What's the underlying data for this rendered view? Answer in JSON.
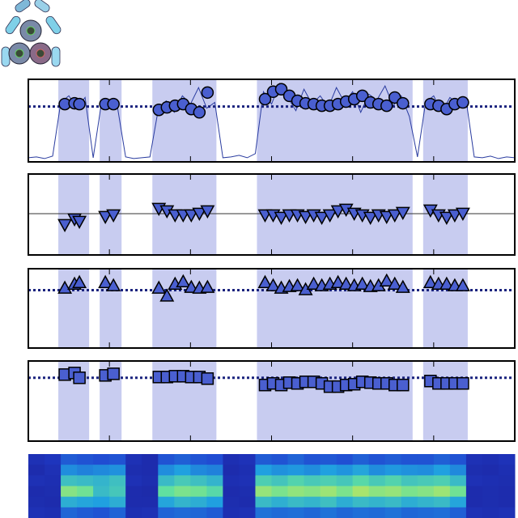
{
  "spans": [
    [
      0.37,
      0.75
    ],
    [
      0.88,
      1.15
    ],
    [
      1.53,
      2.32
    ],
    [
      2.82,
      4.74
    ],
    [
      4.87,
      5.42
    ]
  ],
  "span_color": "#c8ccf0",
  "chart_data": [
    {
      "type": "scatter",
      "marker": "circle",
      "color": "#4a5fd0",
      "xlim": [
        0,
        6
      ],
      "ylim": [
        0,
        1
      ],
      "xticks": [
        1,
        2,
        3,
        4,
        5
      ],
      "hline": 0.67,
      "hline_style": "dotted",
      "hline_color": "#1a237e",
      "trace": {
        "color": "#2a3ca0",
        "x": [
          0.0,
          0.1,
          0.2,
          0.3,
          0.4,
          0.5,
          0.6,
          0.7,
          0.8,
          0.9,
          1.0,
          1.1,
          1.2,
          1.3,
          1.4,
          1.5,
          1.6,
          1.7,
          1.8,
          1.9,
          2.0,
          2.1,
          2.2,
          2.3,
          2.4,
          2.5,
          2.6,
          2.7,
          2.8,
          2.9,
          3.0,
          3.1,
          3.2,
          3.3,
          3.4,
          3.5,
          3.6,
          3.7,
          3.8,
          3.9,
          4.0,
          4.1,
          4.2,
          4.3,
          4.4,
          4.5,
          4.6,
          4.7,
          4.8,
          4.9,
          5.0,
          5.1,
          5.2,
          5.3,
          5.4,
          5.5,
          5.6,
          5.7,
          5.8,
          5.9,
          6.0
        ],
        "values": [
          0.05,
          0.06,
          0.04,
          0.07,
          0.72,
          0.8,
          0.65,
          0.78,
          0.05,
          0.7,
          0.75,
          0.66,
          0.06,
          0.04,
          0.05,
          0.06,
          0.62,
          0.74,
          0.6,
          0.8,
          0.7,
          0.9,
          0.65,
          0.72,
          0.05,
          0.06,
          0.08,
          0.05,
          0.1,
          0.85,
          0.7,
          0.95,
          0.78,
          0.62,
          0.88,
          0.7,
          0.8,
          0.66,
          0.9,
          0.72,
          0.85,
          0.6,
          0.82,
          0.75,
          0.92,
          0.68,
          0.8,
          0.55,
          0.06,
          0.72,
          0.8,
          0.6,
          0.78,
          0.7,
          0.75,
          0.06,
          0.05,
          0.07,
          0.04,
          0.06,
          0.05
        ]
      },
      "x": [
        0.45,
        0.57,
        0.63,
        0.95,
        1.05,
        1.61,
        1.71,
        1.81,
        1.91,
        2.01,
        2.11,
        2.21,
        2.92,
        3.02,
        3.12,
        3.22,
        3.32,
        3.42,
        3.52,
        3.62,
        3.72,
        3.82,
        3.92,
        4.02,
        4.12,
        4.22,
        4.32,
        4.42,
        4.52,
        4.62,
        4.96,
        5.06,
        5.16,
        5.26,
        5.36
      ],
      "values": [
        0.7,
        0.71,
        0.7,
        0.7,
        0.7,
        0.63,
        0.66,
        0.68,
        0.7,
        0.64,
        0.6,
        0.84,
        0.76,
        0.85,
        0.88,
        0.8,
        0.74,
        0.71,
        0.7,
        0.68,
        0.68,
        0.7,
        0.73,
        0.76,
        0.8,
        0.72,
        0.7,
        0.68,
        0.78,
        0.71,
        0.7,
        0.68,
        0.64,
        0.7,
        0.72
      ]
    },
    {
      "type": "scatter",
      "marker": "triangle-down",
      "color": "#4a5fd0",
      "xlim": [
        0,
        6
      ],
      "ylim": [
        0,
        1
      ],
      "xticks": [
        1,
        2,
        3,
        4,
        5
      ],
      "hline": 0.51,
      "hline_style": "solid",
      "hline_color": "#333333",
      "x": [
        0.45,
        0.57,
        0.63,
        0.95,
        1.05,
        1.61,
        1.71,
        1.81,
        1.91,
        2.01,
        2.11,
        2.21,
        2.92,
        3.02,
        3.12,
        3.22,
        3.32,
        3.42,
        3.52,
        3.62,
        3.72,
        3.82,
        3.92,
        4.02,
        4.12,
        4.22,
        4.32,
        4.42,
        4.52,
        4.62,
        4.96,
        5.06,
        5.16,
        5.26,
        5.36
      ],
      "values": [
        0.38,
        0.45,
        0.42,
        0.48,
        0.5,
        0.58,
        0.55,
        0.5,
        0.5,
        0.5,
        0.52,
        0.55,
        0.5,
        0.5,
        0.47,
        0.5,
        0.5,
        0.48,
        0.5,
        0.47,
        0.5,
        0.55,
        0.57,
        0.52,
        0.5,
        0.47,
        0.5,
        0.48,
        0.5,
        0.53,
        0.56,
        0.5,
        0.47,
        0.5,
        0.52
      ]
    },
    {
      "type": "scatter",
      "marker": "triangle-up",
      "color": "#4a5fd0",
      "xlim": [
        0,
        6
      ],
      "ylim": [
        0,
        1
      ],
      "xticks": [
        1,
        2,
        3,
        4,
        5
      ],
      "hline": 0.73,
      "hline_style": "dotted",
      "hline_color": "#1a237e",
      "x": [
        0.45,
        0.57,
        0.63,
        0.95,
        1.05,
        1.61,
        1.71,
        1.81,
        1.91,
        2.01,
        2.11,
        2.21,
        2.92,
        3.02,
        3.12,
        3.22,
        3.32,
        3.42,
        3.52,
        3.62,
        3.72,
        3.82,
        3.92,
        4.02,
        4.12,
        4.22,
        4.32,
        4.42,
        4.52,
        4.62,
        4.96,
        5.06,
        5.16,
        5.26,
        5.36
      ],
      "values": [
        0.75,
        0.8,
        0.82,
        0.82,
        0.78,
        0.75,
        0.65,
        0.8,
        0.83,
        0.76,
        0.75,
        0.76,
        0.82,
        0.78,
        0.75,
        0.77,
        0.78,
        0.73,
        0.8,
        0.78,
        0.8,
        0.82,
        0.8,
        0.78,
        0.8,
        0.77,
        0.78,
        0.84,
        0.8,
        0.76,
        0.82,
        0.8,
        0.8,
        0.78,
        0.78
      ]
    },
    {
      "type": "scatter",
      "marker": "square",
      "color": "#4a5fd0",
      "xlim": [
        0,
        6
      ],
      "ylim": [
        0,
        1
      ],
      "xticks": [
        1,
        2,
        3,
        4,
        5
      ],
      "hline": 0.79,
      "hline_style": "dotted",
      "hline_color": "#1a237e",
      "x": [
        0.45,
        0.57,
        0.63,
        0.95,
        1.05,
        1.61,
        1.71,
        1.81,
        1.91,
        2.01,
        2.11,
        2.21,
        2.92,
        3.02,
        3.12,
        3.22,
        3.32,
        3.42,
        3.52,
        3.62,
        3.72,
        3.82,
        3.92,
        4.02,
        4.12,
        4.22,
        4.32,
        4.42,
        4.52,
        4.62,
        4.96,
        5.06,
        5.16,
        5.26,
        5.36
      ],
      "values": [
        0.83,
        0.85,
        0.79,
        0.82,
        0.84,
        0.8,
        0.8,
        0.81,
        0.81,
        0.8,
        0.8,
        0.78,
        0.7,
        0.72,
        0.7,
        0.73,
        0.72,
        0.74,
        0.74,
        0.72,
        0.68,
        0.68,
        0.7,
        0.71,
        0.74,
        0.73,
        0.72,
        0.72,
        0.7,
        0.7,
        0.75,
        0.72,
        0.72,
        0.72,
        0.72
      ]
    },
    {
      "type": "heatmap",
      "xlim": [
        0,
        6
      ],
      "colormap": [
        "#1a1a8c",
        "#2040d0",
        "#20a0e0",
        "#60e0a0",
        "#e8e840"
      ],
      "values": [
        [
          0.15,
          0.18,
          0.32,
          0.3,
          0.28,
          0.3,
          0.15,
          0.12,
          0.3,
          0.33,
          0.3,
          0.28,
          0.14,
          0.16,
          0.32,
          0.3,
          0.34,
          0.3,
          0.31,
          0.29,
          0.33,
          0.3,
          0.32,
          0.3,
          0.3,
          0.33,
          0.3,
          0.15,
          0.14,
          0.16
        ],
        [
          0.12,
          0.15,
          0.45,
          0.42,
          0.44,
          0.46,
          0.13,
          0.12,
          0.45,
          0.5,
          0.44,
          0.42,
          0.12,
          0.14,
          0.5,
          0.46,
          0.48,
          0.45,
          0.5,
          0.47,
          0.52,
          0.45,
          0.48,
          0.46,
          0.45,
          0.5,
          0.44,
          0.13,
          0.12,
          0.14
        ],
        [
          0.15,
          0.14,
          0.62,
          0.6,
          0.58,
          0.62,
          0.15,
          0.13,
          0.6,
          0.66,
          0.62,
          0.58,
          0.14,
          0.15,
          0.68,
          0.64,
          0.7,
          0.66,
          0.68,
          0.65,
          0.72,
          0.66,
          0.7,
          0.64,
          0.66,
          0.68,
          0.6,
          0.15,
          0.14,
          0.13
        ],
        [
          0.12,
          0.13,
          0.82,
          0.78,
          0.6,
          0.65,
          0.12,
          0.11,
          0.75,
          0.8,
          0.78,
          0.72,
          0.12,
          0.13,
          0.85,
          0.8,
          0.84,
          0.82,
          0.86,
          0.8,
          0.88,
          0.83,
          0.85,
          0.8,
          0.82,
          0.86,
          0.78,
          0.12,
          0.13,
          0.12
        ],
        [
          0.13,
          0.12,
          0.55,
          0.52,
          0.5,
          0.55,
          0.12,
          0.12,
          0.52,
          0.58,
          0.55,
          0.5,
          0.13,
          0.12,
          0.6,
          0.56,
          0.6,
          0.58,
          0.62,
          0.55,
          0.6,
          0.58,
          0.6,
          0.55,
          0.58,
          0.6,
          0.52,
          0.12,
          0.13,
          0.12
        ],
        [
          0.15,
          0.14,
          0.35,
          0.32,
          0.3,
          0.34,
          0.14,
          0.15,
          0.34,
          0.36,
          0.35,
          0.32,
          0.14,
          0.15,
          0.38,
          0.36,
          0.37,
          0.35,
          0.38,
          0.35,
          0.37,
          0.36,
          0.38,
          0.35,
          0.36,
          0.37,
          0.33,
          0.15,
          0.14,
          0.15
        ]
      ]
    }
  ]
}
